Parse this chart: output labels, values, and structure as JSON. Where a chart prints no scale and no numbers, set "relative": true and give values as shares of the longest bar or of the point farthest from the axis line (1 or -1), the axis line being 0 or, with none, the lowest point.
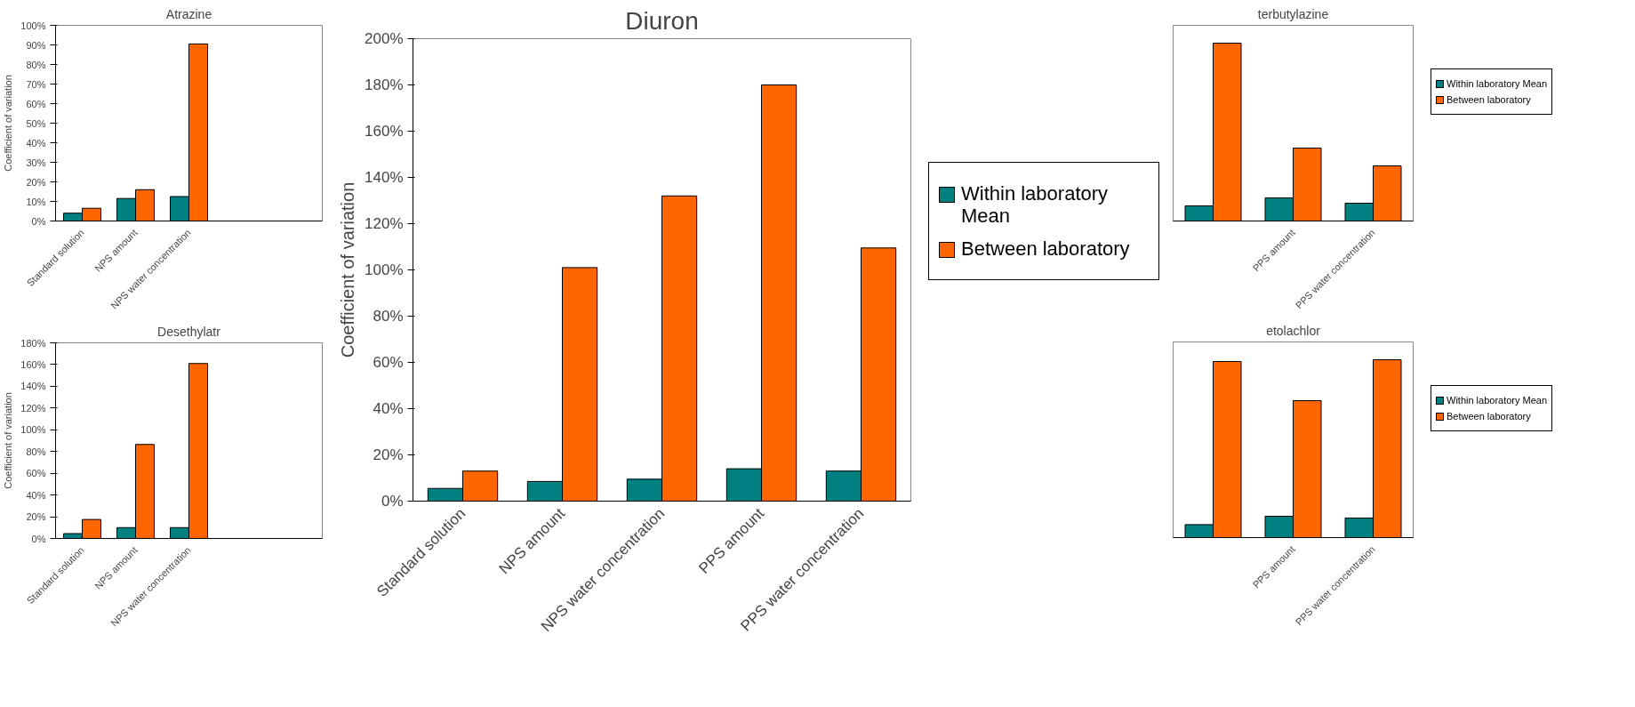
{
  "chart_data": [
    {
      "type": "bar",
      "title": "Atrazine",
      "ylabel": "Coefficient of variation",
      "categories": [
        "Standard solution",
        "NPS amount",
        "NPS water concentration",
        null,
        null
      ],
      "series": [
        {
          "color": "#008080",
          "values": [
            4,
            11.5,
            12.5,
            null,
            null
          ]
        },
        {
          "color": "#ff6600",
          "values": [
            6.5,
            16,
            90.5,
            null,
            null
          ]
        }
      ],
      "ylim": [
        0,
        100
      ],
      "yticks": [
        {
          "value": 0,
          "label": "0%"
        },
        {
          "value": 10,
          "label": "10%"
        },
        {
          "value": 20,
          "label": "20%"
        },
        {
          "value": 30,
          "label": "30%"
        },
        {
          "value": 40,
          "label": "40%"
        },
        {
          "value": 50,
          "label": "50%"
        },
        {
          "value": 60,
          "label": "60%"
        },
        {
          "value": 70,
          "label": "70%"
        },
        {
          "value": 80,
          "label": "80%"
        },
        {
          "value": 90,
          "label": "90%"
        },
        {
          "value": 100,
          "label": "100%"
        }
      ]
    },
    {
      "type": "bar",
      "title": "Desethylatr",
      "ylabel": "Coefficient of variation",
      "categories": [
        "Standard solution",
        "NPS amount",
        "NPS water concentration",
        null,
        null
      ],
      "series": [
        {
          "color": "#008080",
          "values": [
            4.5,
            10,
            10,
            null,
            null
          ]
        },
        {
          "color": "#ff6600",
          "values": [
            17.5,
            86.5,
            161,
            null,
            null
          ]
        }
      ],
      "ylim": [
        0,
        180
      ],
      "yticks": [
        {
          "value": 0,
          "label": "0%"
        },
        {
          "value": 20,
          "label": "20%"
        },
        {
          "value": 40,
          "label": "40%"
        },
        {
          "value": 60,
          "label": "60%"
        },
        {
          "value": 80,
          "label": "80%"
        },
        {
          "value": 100,
          "label": "100%"
        },
        {
          "value": 120,
          "label": "120%"
        },
        {
          "value": 140,
          "label": "140%"
        },
        {
          "value": 160,
          "label": "160%"
        },
        {
          "value": 180,
          "label": "180%"
        }
      ]
    },
    {
      "type": "bar",
      "title": "Diuron",
      "ylabel": "Coefficient of variation",
      "categories": [
        "Standard solution",
        "NPS amount",
        "NPS water concentration",
        "PPS amount",
        "PPS water concentration"
      ],
      "series": [
        {
          "name": "Within laboratory Mean",
          "color": "#008080",
          "values": [
            5.5,
            8.5,
            9.5,
            14,
            13
          ]
        },
        {
          "name": "Between laboratory",
          "color": "#ff6600",
          "values": [
            13,
            101,
            132,
            180,
            109.5
          ]
        }
      ],
      "ylim": [
        0,
        200
      ],
      "yticks": [
        {
          "value": 0,
          "label": "0%"
        },
        {
          "value": 20,
          "label": "20%"
        },
        {
          "value": 40,
          "label": "40%"
        },
        {
          "value": 60,
          "label": "60%"
        },
        {
          "value": 80,
          "label": "80%"
        },
        {
          "value": 100,
          "label": "100%"
        },
        {
          "value": 120,
          "label": "120%"
        },
        {
          "value": 140,
          "label": "140%"
        },
        {
          "value": 160,
          "label": "160%"
        },
        {
          "value": 180,
          "label": "180%"
        },
        {
          "value": 200,
          "label": "200%"
        }
      ],
      "legend": "right"
    },
    {
      "type": "bar",
      "title": "terbutylazine",
      "relative": true,
      "categories": [
        null,
        "PPS amount",
        "PPS water concentration"
      ],
      "series": [
        {
          "name": "Within laboratory Mean",
          "color": "#008080",
          "values": [
            0.085,
            0.13,
            0.1
          ]
        },
        {
          "name": "Between laboratory",
          "color": "#ff6600",
          "values": [
            1,
            0.41,
            0.31
          ]
        }
      ],
      "legend": "right"
    },
    {
      "type": "bar",
      "title": "etolachlor",
      "relative": true,
      "categories": [
        null,
        "PPS amount",
        "PPS water concentration"
      ],
      "series": [
        {
          "name": "Within laboratory Mean",
          "color": "#008080",
          "values": [
            0.073,
            0.12,
            0.11
          ]
        },
        {
          "name": "Between laboratory",
          "color": "#ff6600",
          "values": [
            0.99,
            0.77,
            1
          ]
        }
      ],
      "legend": "right"
    }
  ]
}
